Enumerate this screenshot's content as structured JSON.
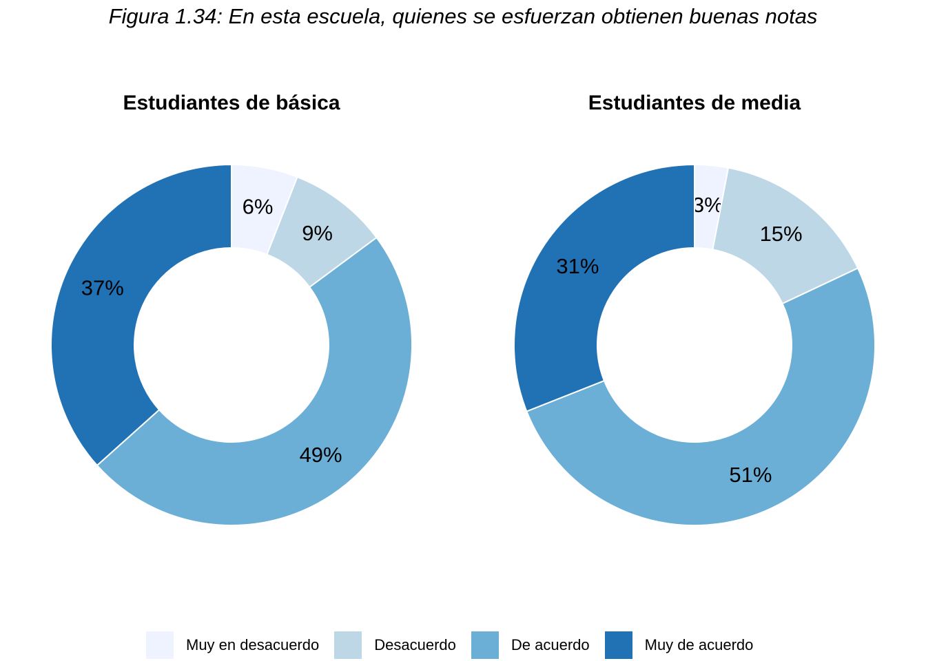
{
  "figure_title": "Figura 1.34: En esta escuela, quienes se esfuerzan obtienen buenas notas",
  "legend": [
    {
      "label": "Muy en desacuerdo",
      "color": "#eff3ff"
    },
    {
      "label": "Desacuerdo",
      "color": "#bdd7e7"
    },
    {
      "label": "De acuerdo",
      "color": "#6baed6"
    },
    {
      "label": "Muy de acuerdo",
      "color": "#2171b5"
    }
  ],
  "chart_data": [
    {
      "type": "pie",
      "variant": "donut",
      "title": "Estudiantes de básica",
      "categories": [
        "Muy en desacuerdo",
        "Desacuerdo",
        "De acuerdo",
        "Muy de acuerdo"
      ],
      "values": [
        6,
        9,
        49,
        37
      ],
      "labels": [
        "6%",
        "9%",
        "49%",
        "37%"
      ],
      "colors": [
        "#eff3ff",
        "#bdd7e7",
        "#6baed6",
        "#2171b5"
      ],
      "start": "top",
      "direction": "clockwise",
      "legend_position": "bottom"
    },
    {
      "type": "pie",
      "variant": "donut",
      "title": "Estudiantes de media",
      "categories": [
        "Muy en desacuerdo",
        "Desacuerdo",
        "De acuerdo",
        "Muy de acuerdo"
      ],
      "values": [
        3,
        15,
        51,
        31
      ],
      "labels": [
        "3%",
        "15%",
        "51%",
        "31%"
      ],
      "colors": [
        "#eff3ff",
        "#bdd7e7",
        "#6baed6",
        "#2171b5"
      ],
      "start": "top",
      "direction": "clockwise",
      "legend_position": "bottom"
    }
  ]
}
